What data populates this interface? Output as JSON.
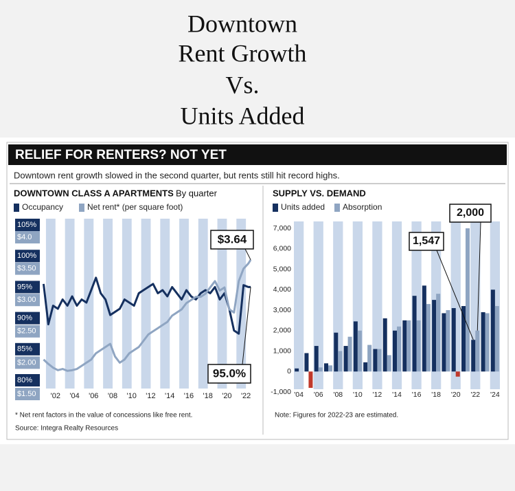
{
  "title_lines": [
    "Downtown",
    "Rent Growth",
    "Vs.",
    "Units Added"
  ],
  "header": "RELIEF FOR RENTERS? NOT YET",
  "subtitle": "Downtown rent growth slowed in the second quarter, but rents still hit record highs.",
  "chart_data": [
    {
      "type": "line",
      "title": "DOWNTOWN CLASS A APARTMENTS",
      "subtitle": "By quarter",
      "x": [
        2000.75,
        2001.25,
        2001.75,
        2002.25,
        2002.75,
        2003.25,
        2003.75,
        2004.25,
        2004.75,
        2005.25,
        2005.75,
        2006.25,
        2006.75,
        2007.25,
        2007.75,
        2008.25,
        2008.75,
        2009.25,
        2009.75,
        2010.25,
        2010.75,
        2011.25,
        2011.75,
        2012.25,
        2012.75,
        2013.25,
        2013.75,
        2014.25,
        2014.75,
        2015.25,
        2015.75,
        2016.25,
        2016.75,
        2017.25,
        2017.75,
        2018.25,
        2018.75,
        2019.25,
        2019.75,
        2020.25,
        2020.75,
        2021.25,
        2021.75,
        2022.25,
        2022.5
      ],
      "series": [
        {
          "name": "Occupancy",
          "color": "#15305f",
          "axis": "y",
          "values": [
            95.5,
            89,
            92,
            91.5,
            93,
            92,
            93.5,
            92,
            93,
            92.5,
            94.5,
            96.5,
            94,
            93,
            90.5,
            91,
            91.5,
            93,
            92.5,
            92,
            94,
            94.5,
            95,
            95.5,
            94,
            94.5,
            93.5,
            95,
            94,
            93,
            94.5,
            93.5,
            93,
            94,
            94.5,
            94,
            95,
            93,
            94,
            91.5,
            88,
            87.5,
            95.3,
            95,
            95.0
          ],
          "value_labels": [
            null,
            null,
            null,
            null,
            null,
            null,
            null,
            null,
            null,
            null,
            null,
            null,
            null,
            null,
            null,
            null,
            null,
            null,
            null,
            null,
            null,
            null,
            null,
            null,
            null,
            null,
            null,
            null,
            null,
            null,
            null,
            null,
            null,
            null,
            null,
            null,
            null,
            null,
            null,
            null,
            null,
            null,
            null,
            null,
            "95.0%"
          ]
        },
        {
          "name": "Net rent* (per square foot)",
          "color": "#8fa5c2",
          "axis": "y2",
          "values": [
            2.05,
            1.98,
            1.92,
            1.88,
            1.9,
            1.87,
            1.88,
            1.9,
            1.95,
            2.0,
            2.05,
            2.15,
            2.2,
            2.25,
            2.3,
            2.1,
            2.0,
            2.05,
            2.15,
            2.2,
            2.25,
            2.35,
            2.45,
            2.5,
            2.55,
            2.6,
            2.65,
            2.75,
            2.8,
            2.85,
            2.95,
            3.0,
            3.05,
            3.05,
            3.1,
            3.2,
            3.3,
            3.15,
            3.2,
            2.85,
            2.8,
            3.3,
            3.5,
            3.58,
            3.64
          ],
          "value_labels": [
            null,
            null,
            null,
            null,
            null,
            null,
            null,
            null,
            null,
            null,
            null,
            null,
            null,
            null,
            null,
            null,
            null,
            null,
            null,
            null,
            null,
            null,
            null,
            null,
            null,
            null,
            null,
            null,
            null,
            null,
            null,
            null,
            null,
            null,
            null,
            null,
            null,
            null,
            null,
            null,
            null,
            null,
            null,
            null,
            "$3.64"
          ]
        }
      ],
      "xlim": [
        2000.5,
        2023
      ],
      "xticks": [
        {
          "value": 2002,
          "label": "'02"
        },
        {
          "value": 2004,
          "label": "'04"
        },
        {
          "value": 2006,
          "label": "'06"
        },
        {
          "value": 2008,
          "label": "'08"
        },
        {
          "value": 2010,
          "label": "'10"
        },
        {
          "value": 2012,
          "label": "'12"
        },
        {
          "value": 2014,
          "label": "'14"
        },
        {
          "value": 2016,
          "label": "'16"
        },
        {
          "value": 2018,
          "label": "'18"
        },
        {
          "value": 2020,
          "label": "'20"
        },
        {
          "value": 2022,
          "label": "'22"
        }
      ],
      "ylim": [
        80,
        105
      ],
      "yticks": [
        {
          "value": 80,
          "label": "80%"
        },
        {
          "value": 85,
          "label": "85%"
        },
        {
          "value": 90,
          "label": "90%"
        },
        {
          "value": 95,
          "label": "95%"
        },
        {
          "value": 100,
          "label": "100%"
        },
        {
          "value": 105,
          "label": "105%"
        }
      ],
      "y2lim": [
        1.5,
        4.0
      ],
      "y2ticks": [
        {
          "value": 1.5,
          "label": "$1.50"
        },
        {
          "value": 2,
          "label": "$2.00"
        },
        {
          "value": 2.5,
          "label": "$2.50"
        },
        {
          "value": 3,
          "label": "$3.00"
        },
        {
          "value": 3.5,
          "label": "$3.50"
        },
        {
          "value": 4,
          "label": "$4.0"
        }
      ],
      "footnote": "* Net rent factors in the value of concessions like free rent.",
      "source": "Source: Integra Realty Resources"
    },
    {
      "type": "bar",
      "title": "SUPPLY VS. DEMAND",
      "categories": [
        "'04",
        null,
        "'06",
        null,
        "'08",
        null,
        "'10",
        null,
        "'12",
        null,
        "'14",
        null,
        "'16",
        null,
        "'18",
        null,
        "'20",
        null,
        "'22",
        null,
        "'24"
      ],
      "series": [
        {
          "name": "Units added",
          "color": "#15305f",
          "values": [
            150,
            900,
            1250,
            400,
            1900,
            1250,
            2450,
            450,
            1100,
            2600,
            2000,
            2500,
            3700,
            4200,
            3500,
            2850,
            3100,
            3200,
            1547,
            2900,
            4000
          ],
          "value_labels": [
            null,
            null,
            null,
            null,
            null,
            null,
            null,
            null,
            null,
            null,
            null,
            null,
            null,
            null,
            null,
            null,
            null,
            null,
            "1,547",
            null,
            null
          ]
        },
        {
          "name": "Absorption",
          "color": "#8fa5c2",
          "negative_color": "#c0392b",
          "values": [
            0,
            -800,
            200,
            300,
            1000,
            1700,
            2000,
            1300,
            1100,
            800,
            2200,
            2500,
            2500,
            3300,
            3800,
            3000,
            -250,
            7000,
            2000,
            2850,
            3200
          ],
          "value_labels": [
            null,
            null,
            null,
            null,
            null,
            null,
            null,
            null,
            null,
            null,
            null,
            null,
            null,
            null,
            null,
            null,
            null,
            null,
            "2,000",
            null,
            null
          ]
        }
      ],
      "ylim": [
        -1000,
        7000
      ],
      "yticks": [
        {
          "value": -1000,
          "label": "-1,000"
        },
        0,
        {
          "value": 1000,
          "label": "1,000"
        },
        {
          "value": 2000,
          "label": "2,000"
        },
        {
          "value": 3000,
          "label": "3,000"
        },
        {
          "value": 4000,
          "label": "4,000"
        },
        {
          "value": 5000,
          "label": "5,000"
        },
        {
          "value": 6000,
          "label": "6,000"
        },
        {
          "value": 7000,
          "label": "7,000"
        }
      ],
      "footnote": "Note: Figures for 2022-23 are estimated."
    }
  ]
}
